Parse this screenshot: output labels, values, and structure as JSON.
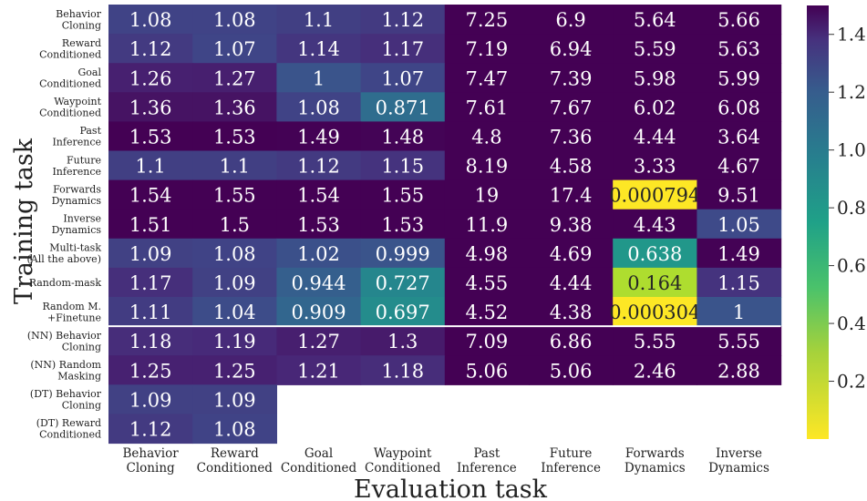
{
  "chart_data": {
    "type": "heatmap",
    "xlabel": "Evaluation task",
    "ylabel": "Training task",
    "columns": [
      [
        "Behavior",
        "Cloning"
      ],
      [
        "Reward",
        "Conditioned"
      ],
      [
        "Goal",
        "Conditioned"
      ],
      [
        "Waypoint",
        "Conditioned"
      ],
      [
        "Past",
        "Inference"
      ],
      [
        "Future",
        "Inference"
      ],
      [
        "Forwards",
        "Dynamics"
      ],
      [
        "Inverse",
        "Dynamics"
      ]
    ],
    "rows": [
      [
        "Behavior",
        "Cloning"
      ],
      [
        "Reward",
        "Conditioned"
      ],
      [
        "Goal",
        "Conditioned"
      ],
      [
        "Waypoint",
        "Conditioned"
      ],
      [
        "Past",
        "Inference"
      ],
      [
        "Future",
        "Inference"
      ],
      [
        "Forwards",
        "Dynamics"
      ],
      [
        "Inverse",
        "Dynamics"
      ],
      [
        "Multi-task",
        "(All the above)"
      ],
      [
        "Random-mask"
      ],
      [
        "Random M.",
        "+Finetune"
      ],
      [
        "(NN) Behavior",
        "Cloning"
      ],
      [
        "(NN) Random",
        "Masking"
      ],
      [
        "(DT) Behavior",
        "Cloning"
      ],
      [
        "(DT) Reward",
        "Conditioned"
      ]
    ],
    "cells": [
      [
        "1.08",
        "1.08",
        "1.1",
        "1.12",
        "7.25",
        "6.9",
        "5.64",
        "5.66"
      ],
      [
        "1.12",
        "1.07",
        "1.14",
        "1.17",
        "7.19",
        "6.94",
        "5.59",
        "5.63"
      ],
      [
        "1.26",
        "1.27",
        "1",
        "1.07",
        "7.47",
        "7.39",
        "5.98",
        "5.99"
      ],
      [
        "1.36",
        "1.36",
        "1.08",
        "0.871",
        "7.61",
        "7.67",
        "6.02",
        "6.08"
      ],
      [
        "1.53",
        "1.53",
        "1.49",
        "1.48",
        "4.8",
        "7.36",
        "4.44",
        "3.64"
      ],
      [
        "1.1",
        "1.1",
        "1.12",
        "1.15",
        "8.19",
        "4.58",
        "3.33",
        "4.67"
      ],
      [
        "1.54",
        "1.55",
        "1.54",
        "1.55",
        "19",
        "17.4",
        "0.000794",
        "9.51"
      ],
      [
        "1.51",
        "1.5",
        "1.53",
        "1.53",
        "11.9",
        "9.38",
        "4.43",
        "1.05"
      ],
      [
        "1.09",
        "1.08",
        "1.02",
        "0.999",
        "4.98",
        "4.69",
        "0.638",
        "1.49"
      ],
      [
        "1.17",
        "1.09",
        "0.944",
        "0.727",
        "4.55",
        "4.44",
        "0.164",
        "1.15"
      ],
      [
        "1.11",
        "1.04",
        "0.909",
        "0.697",
        "4.52",
        "4.38",
        "0.000304",
        "1"
      ],
      [
        "1.18",
        "1.19",
        "1.27",
        "1.3",
        "7.09",
        "6.86",
        "5.55",
        "5.55"
      ],
      [
        "1.25",
        "1.25",
        "1.21",
        "1.18",
        "5.06",
        "5.06",
        "2.46",
        "2.88"
      ],
      [
        "1.09",
        "1.09",
        null,
        null,
        null,
        null,
        null,
        null
      ],
      [
        "1.12",
        "1.08",
        null,
        null,
        null,
        null,
        null,
        null
      ]
    ],
    "separator_after_row": 10,
    "colorbar": {
      "colormap": "viridis (reversed)",
      "range": [
        0,
        1.5
      ],
      "ticks": [
        "0.2",
        "0.4",
        "0.6",
        "0.8",
        "1.0",
        "1.2",
        "1.4"
      ]
    }
  }
}
